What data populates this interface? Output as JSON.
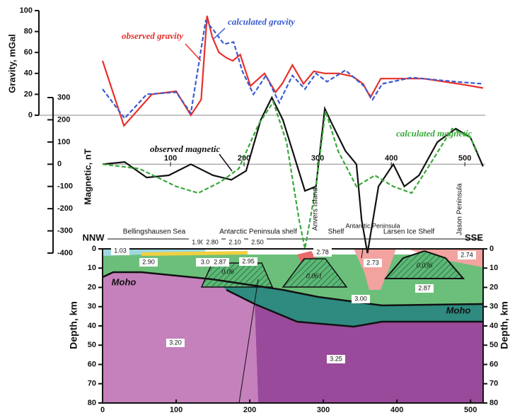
{
  "chart_data": [
    {
      "type": "line",
      "y_label": "Gravity, mGal",
      "xlim": [
        0,
        520
      ],
      "ylim": [
        0,
        100
      ],
      "yticks": [
        0,
        20,
        40,
        60,
        80,
        100
      ],
      "series": [
        {
          "name": "observed gravity",
          "color": "#e8302a",
          "dashed": false,
          "x": [
            0,
            29,
            67,
            100,
            120,
            134,
            142,
            149,
            158,
            168,
            177,
            187,
            201,
            220,
            235,
            244,
            258,
            273,
            287,
            302,
            321,
            340,
            354,
            364,
            378,
            436,
            484,
            517
          ],
          "values": [
            52,
            -10,
            20,
            23,
            0,
            15,
            95,
            75,
            60,
            55,
            52,
            58,
            28,
            40,
            22,
            30,
            48,
            30,
            42,
            40,
            40,
            37,
            30,
            17,
            35,
            35,
            30,
            26
          ]
        },
        {
          "name": "calculated gravity",
          "color": "#3a5bd0",
          "dashed": true,
          "x": [
            0,
            30,
            60,
            100,
            120,
            140,
            150,
            165,
            178,
            190,
            205,
            222,
            240,
            258,
            275,
            290,
            305,
            330,
            355,
            367,
            380,
            420,
            480,
            517
          ],
          "values": [
            25,
            -3,
            20,
            22,
            2,
            90,
            82,
            68,
            70,
            42,
            20,
            38,
            12,
            38,
            25,
            40,
            32,
            43,
            28,
            15,
            30,
            36,
            32,
            30
          ]
        }
      ]
    },
    {
      "type": "line",
      "y_label": "Magnetic, nT",
      "xlim": [
        0,
        520
      ],
      "ylim": [
        -400,
        300
      ],
      "yticks": [
        -400,
        -300,
        -200,
        -100,
        0,
        100,
        200,
        300
      ],
      "xticks": [
        100,
        200,
        300,
        400,
        500
      ],
      "series": [
        {
          "name": "observed magnetic",
          "color": "#111111",
          "dashed": false,
          "x": [
            0,
            30,
            60,
            90,
            120,
            150,
            175,
            195,
            215,
            230,
            245,
            260,
            275,
            290,
            302,
            312,
            330,
            345,
            352,
            360,
            375,
            395,
            410,
            430,
            455,
            480,
            500,
            517
          ],
          "values": [
            0,
            10,
            -60,
            -50,
            0,
            -50,
            -70,
            -30,
            200,
            300,
            200,
            40,
            -120,
            -100,
            250,
            180,
            60,
            0,
            -250,
            -400,
            -100,
            0,
            -100,
            -50,
            100,
            160,
            120,
            -10
          ]
        },
        {
          "name": "calculated magnetic",
          "color": "#3aa83a",
          "dashed": true,
          "x": [
            0,
            50,
            100,
            130,
            160,
            185,
            212,
            232,
            250,
            267,
            275,
            290,
            303,
            320,
            345,
            370,
            395,
            420,
            445,
            475,
            500,
            510
          ],
          "values": [
            0,
            -20,
            -100,
            -130,
            -80,
            -20,
            180,
            280,
            100,
            -250,
            -380,
            -100,
            240,
            60,
            -100,
            -50,
            -100,
            -130,
            0,
            160,
            120,
            50
          ]
        }
      ]
    },
    {
      "type": "section",
      "y_label": "Depth, km",
      "xlim": [
        0,
        520
      ],
      "ylim": [
        0,
        80
      ],
      "yticks": [
        0,
        10,
        20,
        30,
        40,
        50,
        60,
        70,
        80
      ],
      "xticks": [
        0,
        100,
        200,
        300,
        400,
        500
      ],
      "ends": [
        "NNW",
        "SSE"
      ],
      "regions": [
        "Bellingshausen Sea",
        "Antarctic Peninsula shelf",
        "Anvers Island",
        "Shelf",
        "Antarctic Peninsula",
        "Larsen Ice Shelf",
        "Jason Peninsula"
      ],
      "boundary_labels": [
        "Moho",
        "Moho"
      ],
      "densities": [
        "1.03",
        "2.90",
        "1.90",
        "3.0",
        "2.87",
        "0.06",
        "2.80",
        "2.10",
        "2.50",
        "2.95",
        "0.061",
        "2.78",
        "2.73",
        "0.036",
        "2.74",
        "2.87",
        "3.00",
        "3.20",
        "3.25"
      ]
    }
  ]
}
